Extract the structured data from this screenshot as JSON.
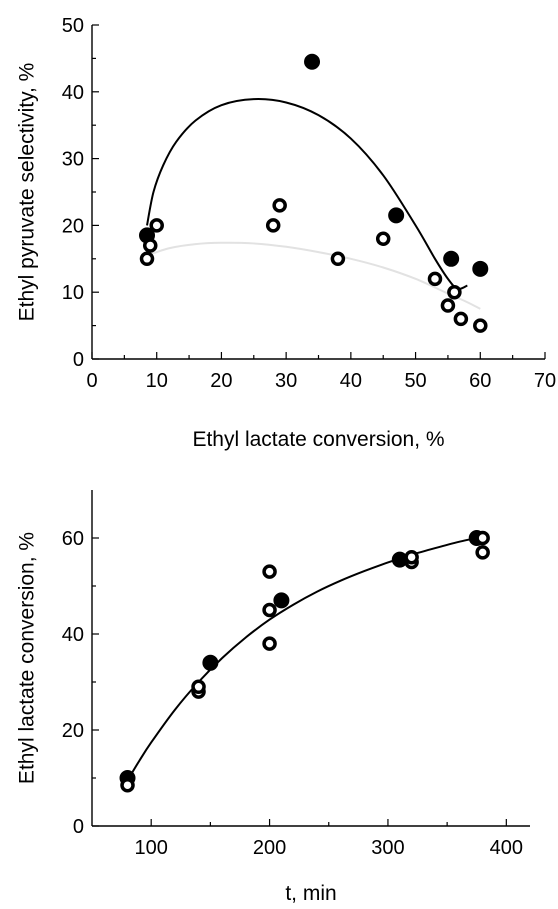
{
  "colors": {
    "ink": "#000000",
    "faint_curve": "#e2e2e2",
    "background": "#ffffff"
  },
  "chart_data": [
    {
      "type": "scatter",
      "title": "",
      "xlabel": "Ethyl lactate conversion, %",
      "ylabel": "Ethyl pyruvate selectivity, %",
      "xlim": [
        0,
        70
      ],
      "ylim": [
        0,
        50
      ],
      "xticks": [
        0,
        10,
        20,
        30,
        40,
        50,
        60,
        70
      ],
      "yticks": [
        0,
        10,
        20,
        30,
        40,
        50
      ],
      "xtick_labels": [
        "0",
        "10",
        "20",
        "30",
        "40",
        "50",
        "60",
        "70"
      ],
      "ytick_labels": [
        "0",
        "10",
        "20",
        "30",
        "40",
        "50"
      ],
      "grid": false,
      "series": [
        {
          "marker": "filled-circle",
          "points": [
            [
              8.5,
              18.5
            ],
            [
              34,
              44.5
            ],
            [
              47,
              21.5
            ],
            [
              55.5,
              15
            ],
            [
              60,
              13.5
            ]
          ]
        },
        {
          "marker": "open-circle",
          "points": [
            [
              8.5,
              15
            ],
            [
              9,
              17
            ],
            [
              10,
              20
            ],
            [
              28,
              20
            ],
            [
              29,
              23
            ],
            [
              38,
              15
            ],
            [
              45,
              18
            ],
            [
              53,
              12
            ],
            [
              55,
              8
            ],
            [
              56,
              10
            ],
            [
              57,
              6
            ],
            [
              60,
              5
            ]
          ]
        },
        {
          "kind": "fit-curve",
          "style": "solid",
          "points": [
            [
              8.5,
              20
            ],
            [
              9.5,
              25
            ],
            [
              11,
              29
            ],
            [
              13,
              32.5
            ],
            [
              16,
              35.7
            ],
            [
              20,
              38
            ],
            [
              25,
              38.9
            ],
            [
              30,
              38.4
            ],
            [
              35,
              36.5
            ],
            [
              40,
              33
            ],
            [
              45,
              27.5
            ],
            [
              50,
              20
            ],
            [
              53,
              15
            ],
            [
              55,
              12
            ],
            [
              56.5,
              10.5
            ],
            [
              58,
              11
            ]
          ]
        },
        {
          "kind": "fit-curve",
          "style": "faint",
          "points": [
            [
              8.5,
              15.5
            ],
            [
              12,
              16.6
            ],
            [
              16,
              17.2
            ],
            [
              20,
              17.4
            ],
            [
              25,
              17.3
            ],
            [
              30,
              16.8
            ],
            [
              35,
              16
            ],
            [
              40,
              15
            ],
            [
              45,
              13.7
            ],
            [
              50,
              12
            ],
            [
              55,
              9.8
            ],
            [
              58,
              8.5
            ],
            [
              60,
              7.5
            ]
          ]
        }
      ]
    },
    {
      "type": "scatter",
      "title": "",
      "xlabel": "t, min",
      "ylabel": "Ethyl lactate conversion, %",
      "xlim": [
        50,
        420
      ],
      "ylim": [
        0,
        70
      ],
      "xticks": [
        100,
        200,
        300,
        400
      ],
      "yticks": [
        0,
        20,
        40,
        60
      ],
      "xtick_labels": [
        "100",
        "200",
        "300",
        "400"
      ],
      "ytick_labels": [
        "0",
        "20",
        "40",
        "60"
      ],
      "grid": false,
      "series": [
        {
          "marker": "filled-circle",
          "points": [
            [
              80,
              10
            ],
            [
              150,
              34
            ],
            [
              210,
              47
            ],
            [
              310,
              55.5
            ],
            [
              375,
              60
            ]
          ]
        },
        {
          "marker": "open-circle",
          "points": [
            [
              80,
              8.5
            ],
            [
              140,
              28
            ],
            [
              140,
              29
            ],
            [
              200,
              38
            ],
            [
              200,
              45
            ],
            [
              200,
              53
            ],
            [
              320,
              55
            ],
            [
              320,
              56
            ],
            [
              380,
              57
            ],
            [
              380,
              60
            ]
          ]
        },
        {
          "kind": "fit-curve",
          "style": "solid",
          "points": [
            [
              80,
              9.5
            ],
            [
              90,
              13.6
            ],
            [
              100,
              17.4
            ],
            [
              120,
              24.2
            ],
            [
              140,
              30
            ],
            [
              160,
              35
            ],
            [
              180,
              39.3
            ],
            [
              200,
              43
            ],
            [
              220,
              46.1
            ],
            [
              240,
              48.8
            ],
            [
              260,
              51.1
            ],
            [
              280,
              53.1
            ],
            [
              300,
              54.9
            ],
            [
              320,
              56.5
            ],
            [
              340,
              57.9
            ],
            [
              360,
              59.2
            ],
            [
              380,
              60.3
            ]
          ]
        }
      ]
    }
  ]
}
